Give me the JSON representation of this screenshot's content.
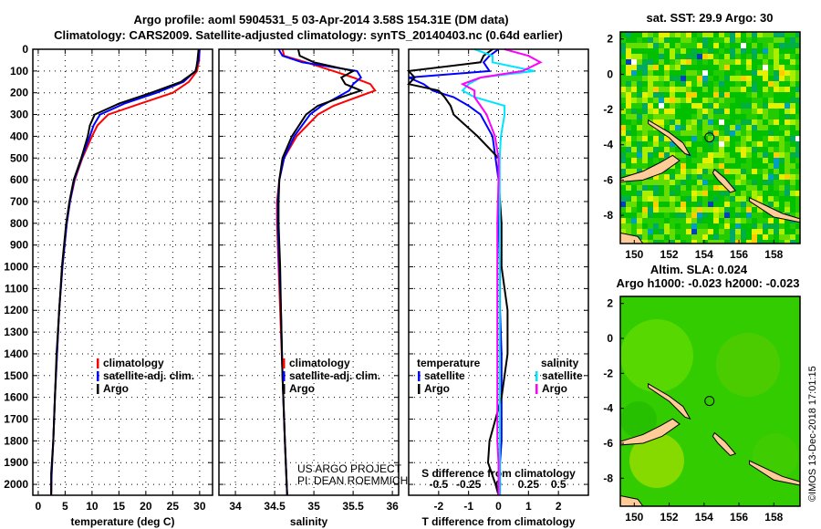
{
  "title_line1": "Argo profile: aoml 5904531_5 03-Apr-2014 3.58S 154.31E (DM data)",
  "title_line2": "Climatology: CARS2009. Satellite-adjusted climatology: synTS_20140403.nc (0.64d earlier)",
  "credit_line1": "US ARGO PROJECT",
  "credit_line2": "PI: DEAN ROEMMICH",
  "watermark": "©IMOS 13-Dec-2018 17:01:15",
  "colors": {
    "climatology": "#ff0000",
    "satellite": "#0000ff",
    "argo": "#000000",
    "sal_satellite": "#00e5ff",
    "sal_argo": "#ff00ff"
  },
  "chart_data": [
    {
      "type": "line",
      "name": "temperature",
      "xlabel": "temperature (deg C)",
      "ylabel": "",
      "xlim": [
        -1,
        32.4
      ],
      "ylim": [
        2050,
        0
      ],
      "xticks": [
        0,
        5,
        10,
        15,
        20,
        25,
        30
      ],
      "yticks": [
        0,
        100,
        200,
        300,
        400,
        500,
        600,
        700,
        800,
        900,
        1000,
        1100,
        1200,
        1300,
        1400,
        1500,
        1600,
        1700,
        1800,
        1900,
        2000
      ],
      "legend": [
        "climatology",
        "satellite-adj. clim.",
        "Argo"
      ],
      "depth": [
        0,
        50,
        100,
        150,
        200,
        250,
        300,
        350,
        400,
        500,
        600,
        700,
        800,
        900,
        1000,
        1200,
        1400,
        1600,
        1800,
        1950,
        2050
      ],
      "series": [
        {
          "name": "climatology",
          "values": [
            30,
            29.9,
            29.5,
            28,
            25,
            19,
            13,
            11,
            10,
            8.2,
            6.8,
            5.9,
            5.3,
            4.9,
            4.5,
            3.9,
            3.5,
            3.1,
            2.8,
            2.5,
            2.4
          ]
        },
        {
          "name": "satellite-adj. clim.",
          "values": [
            30,
            29.8,
            29.2,
            27,
            22,
            16,
            11.5,
            10.3,
            9.6,
            8.1,
            6.7,
            5.9,
            5.3,
            4.9,
            4.5,
            3.9,
            3.5,
            3.1,
            2.8,
            2.5,
            2.4
          ]
        },
        {
          "name": "Argo",
          "values": [
            29.8,
            29.6,
            29.3,
            26.5,
            21,
            15,
            10.5,
            9.6,
            9.2,
            8,
            6.6,
            5.8,
            5.2,
            4.8,
            4.4,
            3.9,
            3.4,
            3.1,
            2.8,
            2.4,
            2.4
          ]
        }
      ]
    },
    {
      "type": "line",
      "name": "salinity",
      "xlabel": "salinity",
      "xlim": [
        33.79,
        36.08
      ],
      "ylim": [
        2050,
        0
      ],
      "xticks": [
        34,
        34.5,
        35,
        35.5,
        36
      ],
      "legend": [
        "climatology",
        "satellite-adj. clim.",
        "Argo"
      ],
      "depth": [
        0,
        30,
        60,
        100,
        130,
        160,
        190,
        220,
        260,
        300,
        400,
        500,
        600,
        700,
        800,
        1000,
        1200,
        1500,
        1800,
        2050
      ],
      "series": [
        {
          "name": "climatology",
          "values": [
            34.6,
            34.62,
            34.9,
            35.25,
            35.5,
            35.72,
            35.78,
            35.55,
            35.25,
            35.05,
            34.78,
            34.62,
            34.56,
            34.53,
            34.53,
            34.55,
            34.57,
            34.6,
            34.63,
            34.66
          ]
        },
        {
          "name": "satellite-adj. clim.",
          "values": [
            34.55,
            34.6,
            34.85,
            35.55,
            35.6,
            35.5,
            35.45,
            35.3,
            35.1,
            34.95,
            34.75,
            34.62,
            34.56,
            34.54,
            34.54,
            34.56,
            34.58,
            34.6,
            34.63,
            34.66
          ]
        },
        {
          "name": "Argo",
          "values": [
            34.8,
            34.82,
            35.0,
            35.5,
            35.35,
            35.4,
            35.6,
            35.35,
            35.05,
            34.9,
            34.72,
            34.6,
            34.56,
            34.55,
            34.55,
            34.57,
            34.58,
            34.6,
            34.63,
            34.66
          ]
        }
      ]
    },
    {
      "type": "line",
      "name": "difference",
      "xlabel": "T difference from climatology",
      "x2label": "S difference from climatology",
      "xlim": [
        -3,
        3
      ],
      "x2lim": [
        -0.75,
        0.75
      ],
      "ylim": [
        2050,
        0
      ],
      "xticks": [
        -2,
        -1,
        0,
        1,
        2
      ],
      "x2ticks": [
        "-0.5",
        "-0.25",
        "0",
        "0.25",
        "0.5"
      ],
      "x2tick_values": [
        -0.5,
        -0.25,
        0,
        0.25,
        0.5
      ],
      "legend_temperature_title": "temperature",
      "legend_salinity_title": "salinity",
      "legend": [
        "satellite",
        "Argo",
        "satellite",
        "Argo"
      ],
      "depth": [
        0,
        30,
        60,
        100,
        130,
        160,
        190,
        220,
        260,
        300,
        400,
        500,
        600,
        800,
        1000,
        1200,
        1400,
        1600,
        1800,
        1900,
        2000,
        2050
      ],
      "series": [
        {
          "name": "temperature satellite",
          "axis": "T",
          "values": [
            0,
            -0.3,
            -0.5,
            -0.3,
            -3,
            -2.5,
            -2.2,
            -1.5,
            -1,
            -0.6,
            -0.2,
            -0.1,
            0,
            0,
            0.05,
            0.05,
            0.1,
            0.1,
            0.1,
            0.05,
            0.05,
            0.05
          ]
        },
        {
          "name": "temperature Argo",
          "axis": "T",
          "values": [
            -0.2,
            -0.5,
            -0.6,
            -3,
            -2.8,
            -3,
            -2,
            -1.8,
            -1.6,
            -1.5,
            -0.7,
            0,
            0,
            0.1,
            0.1,
            0.3,
            0.3,
            0.1,
            -0.3,
            -0.35,
            -0.1,
            0
          ]
        },
        {
          "name": "salinity satellite",
          "axis": "S",
          "values": [
            -0.2,
            -0.05,
            -0.05,
            0.3,
            -0.15,
            -0.25,
            -0.3,
            -0.2,
            0.05,
            0.05,
            0.02,
            0.01,
            0.01,
            0.01,
            0.01,
            0.01,
            0.01,
            0.01,
            0.01,
            0.01,
            0.01,
            0.01
          ]
        },
        {
          "name": "salinity Argo",
          "axis": "S",
          "values": [
            0.05,
            0.25,
            0.35,
            0.2,
            -0.15,
            -0.3,
            -0.2,
            -0.2,
            -0.15,
            -0.1,
            -0.03,
            0,
            0,
            -0.01,
            -0.01,
            -0.01,
            -0.01,
            -0.01,
            -0.01,
            0,
            0,
            0
          ]
        }
      ]
    }
  ],
  "map_top": {
    "title": "sat. SST: 29.9 Argo: 30",
    "lon_ticks": [
      150,
      152,
      154,
      156,
      158
    ],
    "lat_ticks": [
      2,
      0,
      -2,
      -4,
      -6,
      -8
    ],
    "lon_range": [
      149.2,
      159.5
    ],
    "lat_range": [
      2.4,
      -9.6
    ],
    "argo_lon": 154.31,
    "argo_lat": -3.58
  },
  "map_bottom": {
    "title_line1": "Altim. SLA: 0.024",
    "title_line2": "Argo h1000: -0.023 h2000: -0.023",
    "lon_ticks": [
      150,
      152,
      154,
      156,
      158
    ],
    "lat_ticks": [
      2,
      0,
      -2,
      -4,
      -6,
      -8
    ],
    "lon_range": [
      149.2,
      159.5
    ],
    "lat_range": [
      2.4,
      -9.6
    ]
  }
}
